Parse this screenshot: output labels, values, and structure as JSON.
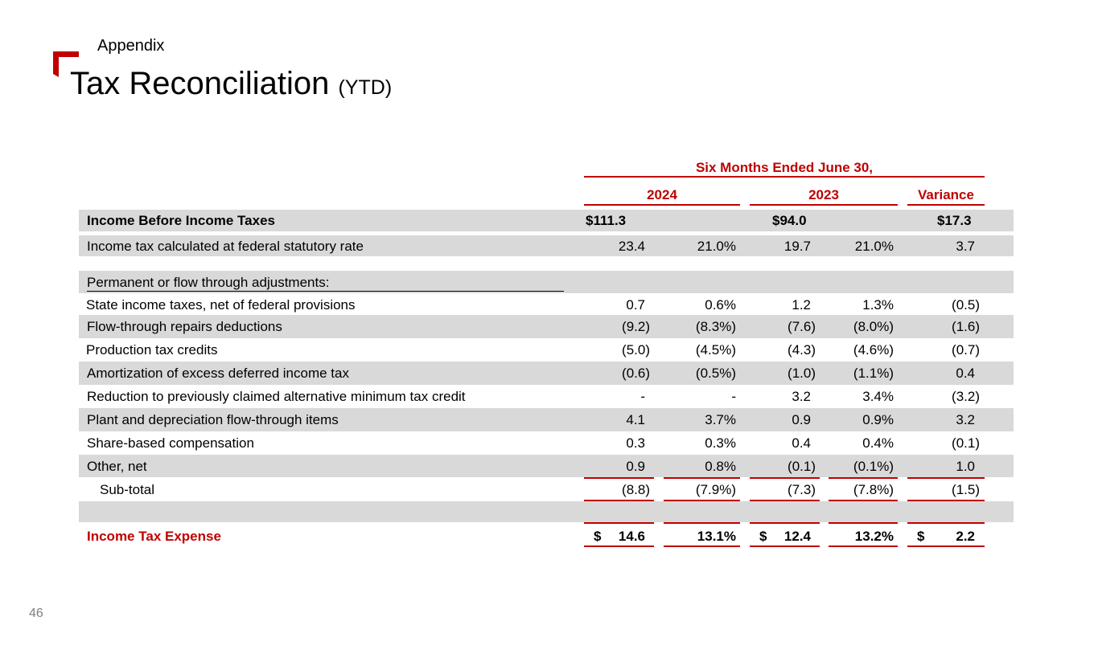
{
  "header": {
    "section": "Appendix",
    "title": "Tax Reconciliation",
    "title_suffix": "(YTD)"
  },
  "table": {
    "period_header": "Six Months Ended June 30,",
    "columns": {
      "year1": "2024",
      "year2": "2023",
      "variance": "Variance"
    },
    "income_before_taxes": {
      "label": "Income Before Income Taxes",
      "y1": "$111.3",
      "y2": "$94.0",
      "variance": "$17.3"
    },
    "statutory": {
      "label": "Income tax calculated at federal statutory rate",
      "y1": "23.4",
      "y1_pct": "21.0%",
      "y2": "19.7",
      "y2_pct": "21.0%",
      "variance": "3.7"
    },
    "adjustments_header": "Permanent or flow through adjustments:",
    "adjustments": [
      {
        "label": "State income taxes, net of federal provisions",
        "y1": "0.7",
        "y1_pct": "0.6%",
        "y2": "1.2",
        "y2_pct": "1.3%",
        "variance": "(0.5)"
      },
      {
        "label": "Flow-through repairs deductions",
        "y1": "(9.2)",
        "y1_pct": "(8.3%)",
        "y2": "(7.6)",
        "y2_pct": "(8.0%)",
        "variance": "(1.6)"
      },
      {
        "label": "Production tax credits",
        "y1": "(5.0)",
        "y1_pct": "(4.5%)",
        "y2": "(4.3)",
        "y2_pct": "(4.6%)",
        "variance": "(0.7)"
      },
      {
        "label": "Amortization of excess deferred income tax",
        "y1": "(0.6)",
        "y1_pct": "(0.5%)",
        "y2": "(1.0)",
        "y2_pct": "(1.1%)",
        "variance": "0.4"
      },
      {
        "label": "Reduction to previously claimed alternative minimum tax credit",
        "y1": "-",
        "y1_pct": "-",
        "y2": "3.2",
        "y2_pct": "3.4%",
        "variance": "(3.2)"
      },
      {
        "label": "Plant and depreciation flow-through items",
        "y1": "4.1",
        "y1_pct": "3.7%",
        "y2": "0.9",
        "y2_pct": "0.9%",
        "variance": "3.2"
      },
      {
        "label": "Share-based compensation",
        "y1": "0.3",
        "y1_pct": "0.3%",
        "y2": "0.4",
        "y2_pct": "0.4%",
        "variance": "(0.1)"
      },
      {
        "label": "Other, net",
        "y1": "0.9",
        "y1_pct": "0.8%",
        "y2": "(0.1)",
        "y2_pct": "(0.1%)",
        "variance": "1.0"
      }
    ],
    "subtotal": {
      "label": "Sub-total",
      "y1": "(8.8)",
      "y1_pct": "(7.9%)",
      "y2": "(7.3)",
      "y2_pct": "(7.8%)",
      "variance": "(1.5)"
    },
    "income_tax_expense": {
      "label": "Income Tax Expense",
      "currency": "$",
      "y1": "14.6",
      "y1_pct": "13.1%",
      "y2": "12.4",
      "y2_pct": "13.2%",
      "variance": "2.2"
    }
  },
  "footer": {
    "page_number": "46"
  },
  "colors": {
    "accent": "#c00000",
    "shade": "#d9d9d9"
  }
}
